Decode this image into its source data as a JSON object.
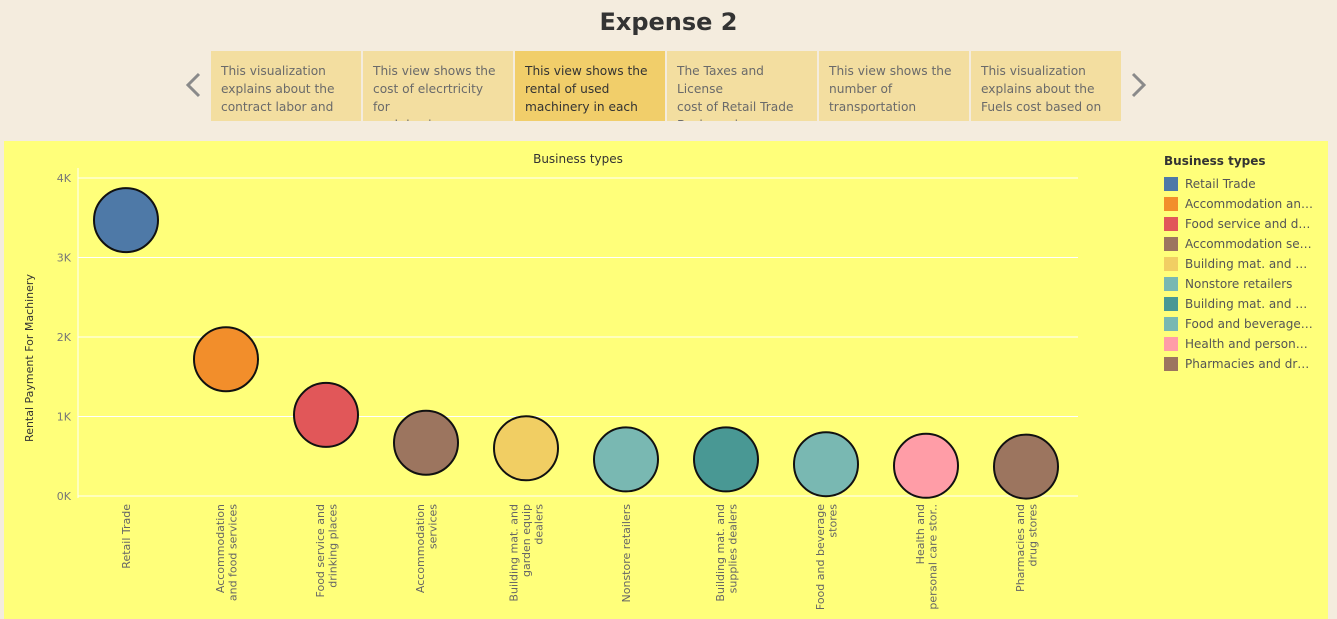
{
  "page": {
    "title": "Expense 2"
  },
  "story": {
    "points": [
      {
        "caption": [
          "This visualization",
          "explains about the",
          "contract labor and"
        ],
        "active": false
      },
      {
        "caption": [
          "This view shows the",
          "cost of elecrtricity for",
          "each business."
        ],
        "active": false
      },
      {
        "caption": [
          "This view shows the",
          "rental of used",
          "machinery in each"
        ],
        "active": true
      },
      {
        "caption": [
          "The Taxes and License",
          "cost of Retail Trade",
          "Business is more than"
        ],
        "active": false
      },
      {
        "caption": [
          "This view shows the",
          "number of",
          "transportation"
        ],
        "active": false
      },
      {
        "caption": [
          "This visualization",
          "explains about the",
          "Fuels cost based on"
        ],
        "active": false
      }
    ],
    "prev_icon": "chevron-left-icon",
    "next_icon": "chevron-right-icon"
  },
  "legend": {
    "title": "Business types",
    "items": [
      {
        "label": "Retail Trade",
        "color": "#4e79a7"
      },
      {
        "label": "Accommodation and ..",
        "color": "#f28e2b"
      },
      {
        "label": "Food service and dri..",
        "color": "#e15759"
      },
      {
        "label": "Accommodation serv..",
        "color": "#9c755f"
      },
      {
        "label": "Building mat. and ga..",
        "color": "#f1ce63"
      },
      {
        "label": "Nonstore retailers",
        "color": "#79b8b2"
      },
      {
        "label": "Building mat. and su..",
        "color": "#499894"
      },
      {
        "label": "Food and beverage s..",
        "color": "#79b8b2"
      },
      {
        "label": "Health and personal ..",
        "color": "#ff9da7"
      },
      {
        "label": "Pharmacies and drug..",
        "color": "#9c755f"
      }
    ]
  },
  "chart_data": {
    "type": "scatter",
    "title": "Business types",
    "ylabel": "Rental Payment For Machinery",
    "xlabel": "",
    "ylim": [
      0,
      4000
    ],
    "yticks": [
      0,
      1000,
      2000,
      3000,
      4000
    ],
    "ytick_labels": [
      "0K",
      "1K",
      "2K",
      "3K",
      "4K"
    ],
    "grid": true,
    "legend_position": "right",
    "categories": [
      [
        "Retail Trade"
      ],
      [
        "Accommodation",
        "and food services"
      ],
      [
        "Food service and",
        "drinking places"
      ],
      [
        "Accommodation",
        "services"
      ],
      [
        "Building mat. and",
        "garden equip",
        "dealers"
      ],
      [
        "Nonstore retailers"
      ],
      [
        "Building mat. and",
        "supplies dealers"
      ],
      [
        "Food and beverage",
        "stores"
      ],
      [
        "Health and",
        "personal care stor.."
      ],
      [
        "Pharmacies and",
        "drug stores"
      ]
    ],
    "values": [
      3470,
      1720,
      1020,
      670,
      600,
      460,
      460,
      400,
      380,
      370
    ],
    "colors": [
      "#4e79a7",
      "#f28e2b",
      "#e15759",
      "#9c755f",
      "#f1ce63",
      "#79b8b2",
      "#499894",
      "#79b8b2",
      "#ff9da7",
      "#9c755f"
    ]
  }
}
